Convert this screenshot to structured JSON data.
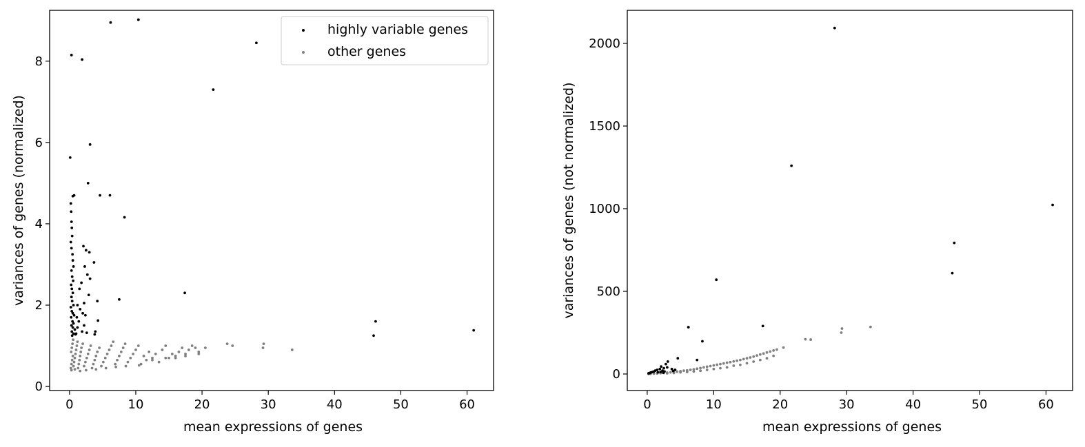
{
  "chart_data": [
    {
      "type": "scatter",
      "title": "",
      "xlabel": "mean expressions of genes",
      "ylabel": "variances of genes (normalized)",
      "xlim": [
        -3,
        64
      ],
      "ylim": [
        -0.1,
        9.25
      ],
      "xticks": [
        0,
        10,
        20,
        30,
        40,
        50,
        60
      ],
      "yticks": [
        0,
        2,
        4,
        6,
        8
      ],
      "grid": false,
      "legend": {
        "placement": "top-right",
        "entries": [
          "highly variable genes",
          "other genes"
        ]
      },
      "series": [
        {
          "name": "highly variable genes",
          "color": "#000000",
          "points": [
            [
              6.2,
              8.95
            ],
            [
              10.4,
              9.02
            ],
            [
              0.3,
              8.15
            ],
            [
              1.9,
              8.04
            ],
            [
              28.2,
              8.45
            ],
            [
              21.7,
              7.3
            ],
            [
              3.1,
              5.95
            ],
            [
              0.1,
              5.63
            ],
            [
              2.8,
              5.0
            ],
            [
              0.5,
              4.68
            ],
            [
              0.7,
              4.7
            ],
            [
              4.6,
              4.7
            ],
            [
              6.1,
              4.7
            ],
            [
              8.3,
              4.16
            ],
            [
              0.2,
              4.5
            ],
            [
              0.25,
              4.3
            ],
            [
              0.3,
              4.05
            ],
            [
              0.35,
              3.9
            ],
            [
              0.4,
              3.7
            ],
            [
              0.2,
              3.55
            ],
            [
              0.3,
              3.4
            ],
            [
              0.45,
              3.25
            ],
            [
              0.5,
              3.1
            ],
            [
              0.6,
              2.95
            ],
            [
              0.3,
              2.85
            ],
            [
              0.4,
              2.7
            ],
            [
              0.55,
              2.6
            ],
            [
              0.25,
              2.5
            ],
            [
              0.35,
              2.4
            ],
            [
              0.5,
              2.3
            ],
            [
              0.3,
              2.2
            ],
            [
              0.4,
              2.1
            ],
            [
              0.6,
              2.0
            ],
            [
              0.2,
              1.95
            ],
            [
              0.35,
              1.85
            ],
            [
              0.5,
              1.8
            ],
            [
              0.7,
              1.75
            ],
            [
              0.25,
              1.7
            ],
            [
              0.45,
              1.6
            ],
            [
              0.6,
              1.55
            ],
            [
              0.3,
              1.5
            ],
            [
              0.5,
              1.45
            ],
            [
              0.8,
              1.4
            ],
            [
              0.35,
              1.35
            ],
            [
              0.6,
              1.3
            ],
            [
              0.9,
              1.28
            ],
            [
              0.4,
              1.25
            ],
            [
              1.0,
              1.3
            ],
            [
              2.1,
              3.45
            ],
            [
              2.5,
              3.35
            ],
            [
              3.0,
              3.3
            ],
            [
              3.7,
              3.05
            ],
            [
              2.3,
              2.95
            ],
            [
              2.7,
              2.75
            ],
            [
              3.1,
              2.65
            ],
            [
              1.8,
              2.55
            ],
            [
              1.5,
              2.4
            ],
            [
              2.9,
              2.25
            ],
            [
              2.2,
              2.05
            ],
            [
              4.2,
              2.1
            ],
            [
              7.5,
              2.14
            ],
            [
              17.4,
              2.3
            ],
            [
              1.2,
              2.0
            ],
            [
              1.6,
              1.9
            ],
            [
              2.0,
              1.8
            ],
            [
              2.4,
              1.75
            ],
            [
              1.1,
              1.7
            ],
            [
              1.4,
              1.6
            ],
            [
              4.3,
              1.62
            ],
            [
              3.9,
              1.35
            ],
            [
              3.8,
              1.28
            ],
            [
              2.2,
              1.5
            ],
            [
              1.9,
              1.35
            ],
            [
              1.2,
              1.45
            ],
            [
              2.6,
              1.32
            ],
            [
              46.2,
              1.6
            ],
            [
              45.9,
              1.25
            ],
            [
              61.0,
              1.38
            ]
          ]
        },
        {
          "name": "other genes",
          "color": "#808080",
          "points": [
            [
              0.2,
              0.45
            ],
            [
              0.3,
              0.55
            ],
            [
              0.4,
              0.65
            ],
            [
              0.5,
              0.75
            ],
            [
              0.25,
              0.85
            ],
            [
              0.35,
              0.95
            ],
            [
              0.45,
              1.05
            ],
            [
              0.55,
              1.15
            ],
            [
              0.6,
              0.5
            ],
            [
              0.7,
              0.6
            ],
            [
              0.8,
              0.7
            ],
            [
              0.9,
              0.8
            ],
            [
              1.0,
              0.9
            ],
            [
              1.1,
              1.0
            ],
            [
              1.2,
              1.1
            ],
            [
              1.3,
              0.45
            ],
            [
              1.4,
              0.55
            ],
            [
              1.5,
              0.65
            ],
            [
              1.6,
              0.75
            ],
            [
              1.7,
              0.85
            ],
            [
              1.8,
              0.95
            ],
            [
              2.0,
              1.05
            ],
            [
              2.2,
              0.5
            ],
            [
              2.4,
              0.6
            ],
            [
              2.6,
              0.7
            ],
            [
              2.8,
              0.8
            ],
            [
              3.0,
              0.9
            ],
            [
              3.2,
              1.0
            ],
            [
              3.4,
              0.45
            ],
            [
              3.6,
              0.55
            ],
            [
              3.8,
              0.65
            ],
            [
              4.0,
              0.75
            ],
            [
              4.2,
              0.85
            ],
            [
              4.5,
              0.95
            ],
            [
              4.8,
              0.5
            ],
            [
              5.1,
              0.6
            ],
            [
              5.4,
              0.7
            ],
            [
              5.7,
              0.8
            ],
            [
              6.0,
              0.9
            ],
            [
              6.3,
              1.0
            ],
            [
              6.6,
              1.1
            ],
            [
              6.9,
              0.55
            ],
            [
              7.2,
              0.65
            ],
            [
              7.5,
              0.75
            ],
            [
              7.8,
              0.85
            ],
            [
              8.1,
              0.95
            ],
            [
              8.4,
              1.05
            ],
            [
              8.8,
              0.6
            ],
            [
              9.2,
              0.7
            ],
            [
              9.6,
              0.8
            ],
            [
              10.0,
              0.9
            ],
            [
              10.4,
              1.0
            ],
            [
              10.8,
              0.55
            ],
            [
              11.2,
              0.75
            ],
            [
              11.6,
              0.65
            ],
            [
              12.0,
              0.85
            ],
            [
              12.5,
              0.7
            ],
            [
              13.0,
              0.8
            ],
            [
              13.5,
              0.6
            ],
            [
              14.0,
              0.9
            ],
            [
              14.5,
              1.0
            ],
            [
              15.0,
              0.7
            ],
            [
              15.5,
              0.8
            ],
            [
              16.0,
              0.75
            ],
            [
              16.5,
              0.85
            ],
            [
              17.0,
              0.95
            ],
            [
              17.5,
              0.8
            ],
            [
              18.0,
              0.9
            ],
            [
              18.5,
              1.0
            ],
            [
              19.0,
              0.95
            ],
            [
              19.5,
              0.85
            ],
            [
              20.5,
              0.95
            ],
            [
              23.8,
              1.05
            ],
            [
              24.6,
              1.0
            ],
            [
              29.3,
              1.05
            ],
            [
              29.2,
              0.95
            ],
            [
              33.6,
              0.9
            ],
            [
              0.3,
              0.4
            ],
            [
              0.8,
              0.42
            ],
            [
              1.6,
              0.38
            ],
            [
              2.5,
              0.4
            ],
            [
              4.0,
              0.42
            ],
            [
              5.5,
              0.45
            ],
            [
              7.0,
              0.48
            ],
            [
              8.5,
              0.5
            ],
            [
              10.5,
              0.52
            ],
            [
              12.5,
              0.65
            ],
            [
              14.5,
              0.7
            ],
            [
              16.0,
              0.7
            ],
            [
              17.5,
              0.75
            ],
            [
              19.5,
              0.8
            ]
          ]
        }
      ]
    },
    {
      "type": "scatter",
      "title": "",
      "xlabel": "mean expressions of genes",
      "ylabel": "variances of genes (not normalized)",
      "xlim": [
        -3,
        64
      ],
      "ylim": [
        -100,
        2200
      ],
      "xticks": [
        0,
        10,
        20,
        30,
        40,
        50,
        60
      ],
      "yticks": [
        0,
        500,
        1000,
        1500,
        2000
      ],
      "grid": false,
      "series": [
        {
          "name": "highly variable genes",
          "color": "#000000",
          "points": [
            [
              28.2,
              2093
            ],
            [
              21.7,
              1260
            ],
            [
              61.0,
              1023
            ],
            [
              46.2,
              793
            ],
            [
              45.9,
              610
            ],
            [
              10.4,
              570
            ],
            [
              17.4,
              290
            ],
            [
              6.2,
              283
            ],
            [
              8.3,
              198
            ],
            [
              7.5,
              85
            ],
            [
              4.6,
              95
            ],
            [
              3.1,
              75
            ],
            [
              2.8,
              60
            ],
            [
              2.1,
              45
            ],
            [
              1.9,
              30
            ],
            [
              1.5,
              25
            ],
            [
              1.2,
              20
            ],
            [
              1.0,
              15
            ],
            [
              0.8,
              12
            ],
            [
              0.6,
              10
            ],
            [
              0.5,
              8
            ],
            [
              0.4,
              6
            ],
            [
              0.3,
              5
            ],
            [
              0.2,
              4
            ],
            [
              2.5,
              35
            ],
            [
              3.0,
              40
            ],
            [
              3.7,
              30
            ],
            [
              2.3,
              20
            ],
            [
              4.2,
              25
            ],
            [
              2.6,
              15
            ],
            [
              3.9,
              18
            ],
            [
              1.6,
              10
            ],
            [
              2.0,
              12
            ],
            [
              2.4,
              8
            ]
          ]
        },
        {
          "name": "other genes",
          "color": "#808080",
          "points": [
            [
              0.2,
              0.5
            ],
            [
              0.5,
              1
            ],
            [
              1.0,
              2
            ],
            [
              1.5,
              3
            ],
            [
              2.0,
              5
            ],
            [
              2.5,
              6
            ],
            [
              3.0,
              8
            ],
            [
              3.5,
              10
            ],
            [
              4.0,
              12
            ],
            [
              4.5,
              14
            ],
            [
              5.0,
              17
            ],
            [
              5.5,
              20
            ],
            [
              6.0,
              22
            ],
            [
              6.5,
              25
            ],
            [
              7.0,
              28
            ],
            [
              7.5,
              32
            ],
            [
              8.0,
              36
            ],
            [
              8.5,
              40
            ],
            [
              9.0,
              44
            ],
            [
              9.5,
              48
            ],
            [
              10.0,
              52
            ],
            [
              10.5,
              56
            ],
            [
              11.0,
              60
            ],
            [
              11.5,
              64
            ],
            [
              12.0,
              68
            ],
            [
              12.5,
              72
            ],
            [
              13.0,
              76
            ],
            [
              13.5,
              80
            ],
            [
              14.0,
              85
            ],
            [
              14.5,
              90
            ],
            [
              15.0,
              95
            ],
            [
              15.5,
              100
            ],
            [
              16.0,
              105
            ],
            [
              16.5,
              112
            ],
            [
              17.0,
              118
            ],
            [
              17.5,
              124
            ],
            [
              18.0,
              130
            ],
            [
              18.5,
              136
            ],
            [
              19.0,
              142
            ],
            [
              19.5,
              148
            ],
            [
              20.5,
              160
            ],
            [
              23.8,
              210
            ],
            [
              24.6,
              208
            ],
            [
              29.3,
              275
            ],
            [
              29.2,
              250
            ],
            [
              33.6,
              285
            ],
            [
              3.0,
              4
            ],
            [
              4.0,
              6
            ],
            [
              5.0,
              10
            ],
            [
              6.0,
              12
            ],
            [
              7.0,
              15
            ],
            [
              8.0,
              20
            ],
            [
              9.0,
              25
            ],
            [
              10.0,
              30
            ],
            [
              11.0,
              35
            ],
            [
              12.0,
              40
            ],
            [
              13.0,
              50
            ],
            [
              14.0,
              55
            ],
            [
              15.0,
              65
            ],
            [
              16.0,
              75
            ],
            [
              17.0,
              85
            ],
            [
              18.0,
              95
            ],
            [
              19.0,
              110
            ]
          ]
        }
      ]
    }
  ]
}
